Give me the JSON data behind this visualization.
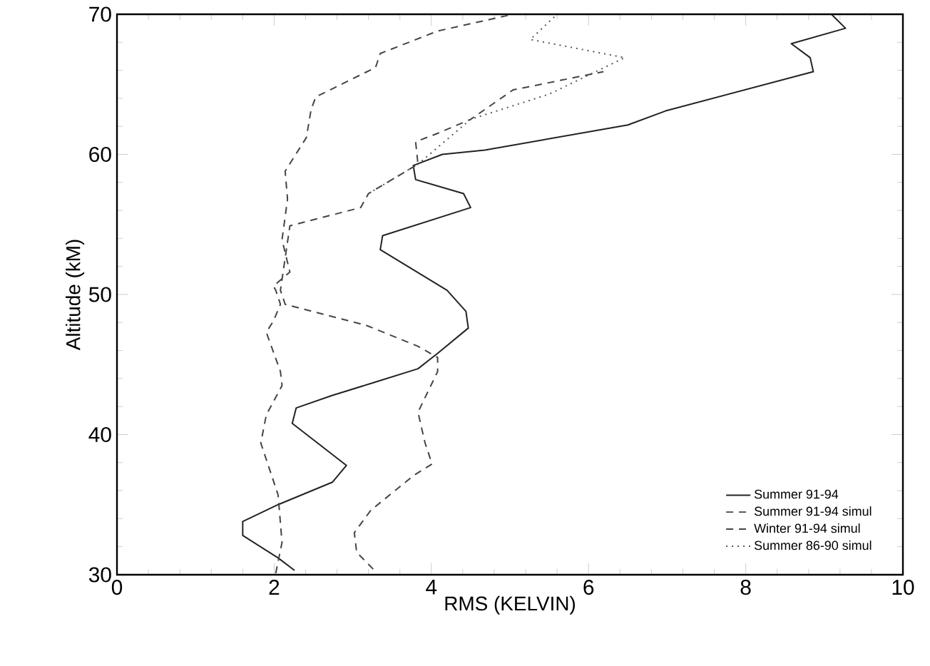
{
  "chart_data": {
    "type": "line",
    "xlabel": "RMS (KELVIN)",
    "ylabel": "Altitude (kM)",
    "xlim": [
      0,
      10
    ],
    "ylim": [
      30,
      70
    ],
    "xticks": [
      0,
      2,
      4,
      6,
      8,
      10
    ],
    "yticks": [
      30,
      40,
      50,
      60,
      70
    ],
    "grid": false,
    "legend": "bottom right",
    "marker": "none",
    "series": [
      {
        "name": "Summer 91-94",
        "color": "#222222",
        "line_style": "solid",
        "x": [
          2.26,
          2.05,
          1.6,
          1.6,
          2.05,
          2.74,
          2.92,
          2.23,
          2.28,
          2.74,
          3.26,
          3.83,
          4.08,
          4.47,
          4.44,
          4.2,
          3.35,
          3.38,
          4.5,
          4.41,
          3.8,
          3.77,
          4.14,
          4.68,
          6.5,
          6.98,
          8.86,
          8.82,
          8.58,
          9.27,
          9.09
        ],
        "values": [
          30.3,
          31.2,
          32.8,
          33.8,
          35,
          36.6,
          37.8,
          40.8,
          41.9,
          42.8,
          43.7,
          44.7,
          45.8,
          47.6,
          48.8,
          50.3,
          53.2,
          54.2,
          56.2,
          57.2,
          58.2,
          59.2,
          60,
          60.3,
          62.1,
          63.1,
          65.9,
          66.9,
          67.9,
          69,
          70
        ]
      },
      {
        "name": "Summer 91-94 simul",
        "color": "#444444",
        "line_style": "dashed",
        "x": [
          3.26,
          3.05,
          3.02,
          3.23,
          3.78,
          4.01,
          3.92,
          3.83,
          4.08,
          4.08,
          3.83,
          3.17,
          2.14,
          2.08,
          2.2,
          3.1,
          3.2,
          3.83,
          3.8,
          4.08,
          4.5,
          5.04,
          6.19
        ],
        "values": [
          30.4,
          31.6,
          33,
          34.6,
          37.1,
          37.9,
          39.4,
          41.6,
          44.5,
          45.5,
          46.3,
          47.8,
          49.3,
          50.3,
          54.9,
          56.2,
          57.2,
          59.3,
          60.9,
          61.5,
          62.5,
          64.6,
          65.9
        ]
      },
      {
        "name": "Winter  91-94 simul",
        "color": "#444444",
        "line_style": "dashed",
        "x": [
          2.02,
          2.1,
          2.05,
          1.83,
          1.9,
          2.1,
          2.08,
          1.9,
          1.99,
          2.08,
          2.02,
          1.99,
          2.2,
          2.1,
          2.17,
          2.14,
          2.41,
          2.47,
          2.53,
          3.29,
          3.35,
          4.08,
          5.04
        ],
        "values": [
          30.1,
          32.3,
          35.7,
          39.4,
          41.4,
          43.5,
          44.5,
          47.3,
          48.1,
          49.3,
          50.3,
          50.6,
          51.6,
          53.9,
          56.8,
          58.8,
          61.2,
          63.2,
          64.1,
          66.2,
          67.2,
          68.8,
          70
        ]
      },
      {
        "name": "Summer 86-90 simul",
        "color": "#555555",
        "line_style": "dotted",
        "x": [
          3.2,
          3.83,
          4.5,
          5.5,
          6.46,
          5.26,
          5.6
        ],
        "values": [
          57.2,
          59.3,
          62.5,
          64.3,
          66.9,
          68.2,
          70
        ]
      }
    ]
  }
}
